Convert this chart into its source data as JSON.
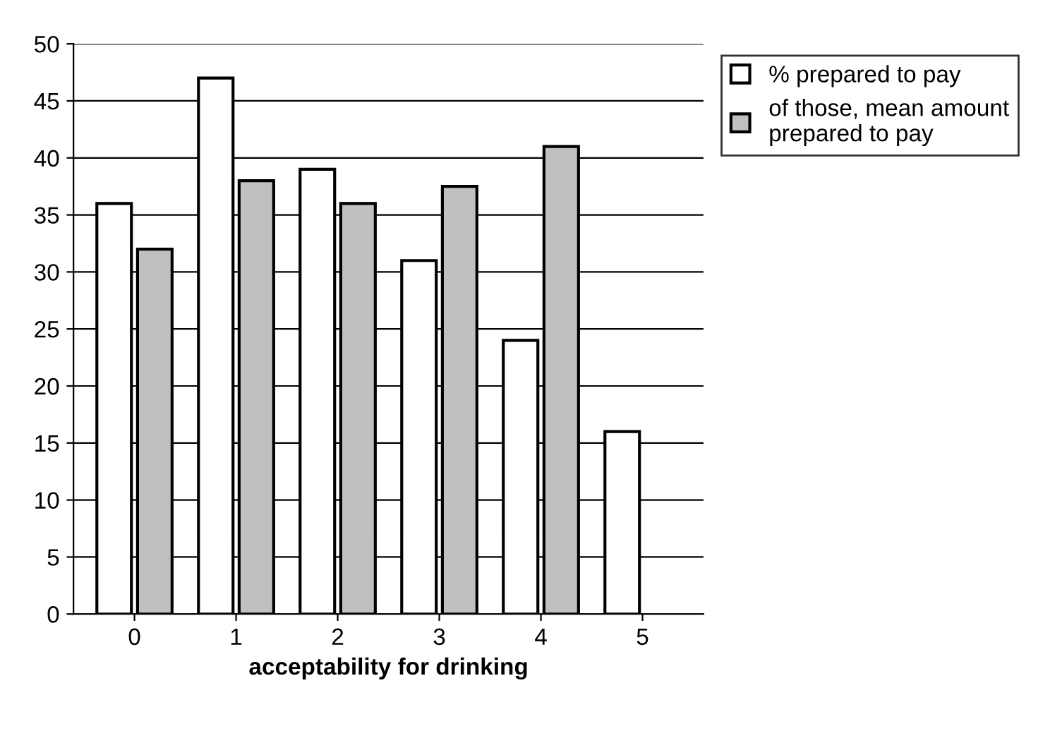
{
  "chart_data": {
    "type": "bar",
    "xlabel": "acceptability for drinking",
    "categories": [
      "0",
      "1",
      "2",
      "3",
      "4",
      "5"
    ],
    "series": [
      {
        "name": "% prepared to pay",
        "color": "#ffffff",
        "values": [
          36,
          47,
          39,
          31,
          24,
          16
        ]
      },
      {
        "name": "of those, mean amount\nprepared to pay",
        "color": "#c0c0c0",
        "values": [
          32,
          38,
          36,
          37.5,
          41,
          null
        ]
      }
    ],
    "ylim": [
      0,
      50
    ],
    "yticks": [
      0,
      5,
      10,
      15,
      20,
      25,
      30,
      35,
      40,
      45,
      50
    ],
    "grid": "y",
    "legend": "top right"
  }
}
